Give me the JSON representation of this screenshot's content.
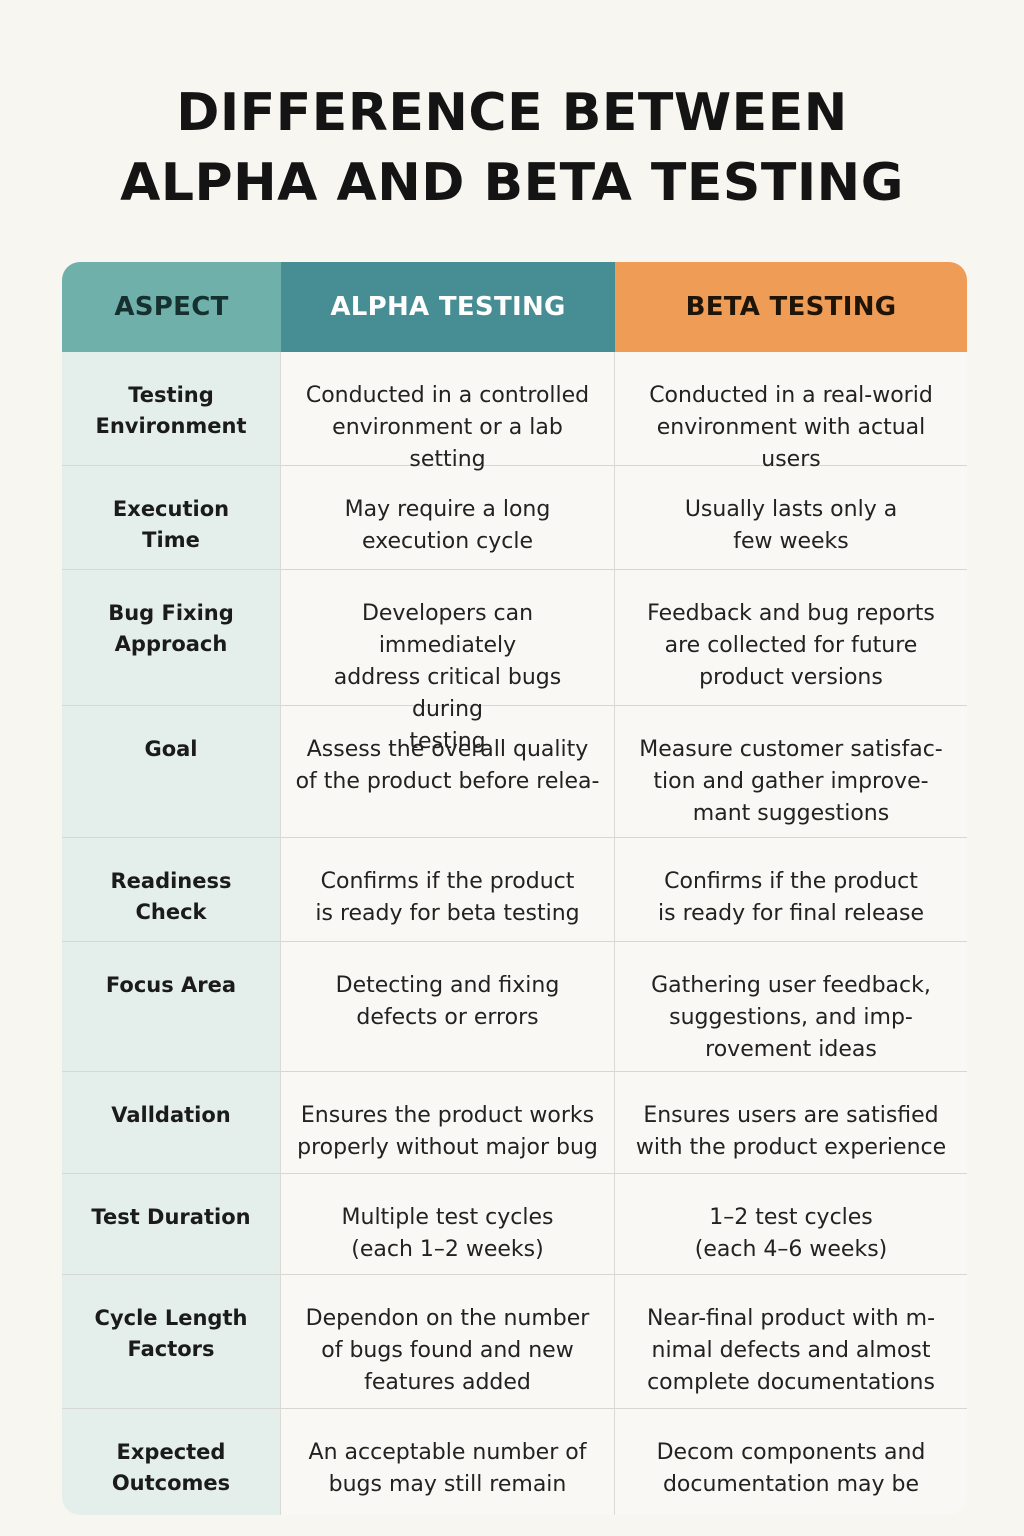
{
  "title": {
    "line1": "DIFFERENCE BETWEEN",
    "line2": "ALPHA AND BETA TESTING"
  },
  "table": {
    "headers": {
      "aspect": "ASPECT",
      "alpha": "ALPHA TESTING",
      "beta": "BETA TESTING"
    },
    "rows": [
      {
        "aspect": "Testing\nEnvironment",
        "alpha": "Conducted in a controlled\nenvironment or a lab setting",
        "beta": "Conducted in a real-worid\nenvironment with actual users"
      },
      {
        "aspect": "Execution\nTime",
        "alpha": "May require a long\nexecution cycle",
        "beta": "Usually lasts only a\nfew weeks"
      },
      {
        "aspect": "Bug Fixing\nApproach",
        "alpha": "Developers can immediately\naddress critical bugs during\ntesting",
        "beta": "Feedback and bug reports\nare collected for future\nproduct versions"
      },
      {
        "aspect": "Goal",
        "alpha": "Assess the overall quality\nof the product before relea-",
        "beta": "Measure customer satisfac-\ntion and gather improve-\nmant suggestions"
      },
      {
        "aspect": "Readiness\nCheck",
        "alpha": "Confirms if the product\nis ready for beta testing",
        "beta": "Confirms if the product\nis ready for final release"
      },
      {
        "aspect": "Focus Area",
        "alpha": "Detecting and fixing\ndefects or errors",
        "beta": "Gathering user feedback,\nsuggestions, and imp-\nrovement ideas"
      },
      {
        "aspect": "Valldation",
        "alpha": "Ensures the product works\nproperly without major bug",
        "beta": "Ensures users are satisfied\nwith the product experience"
      },
      {
        "aspect": "Test Duration",
        "alpha": "Multiple test cycles\n(each 1–2 weeks)",
        "beta": "1–2 test cycles\n(each 4–6 weeks)"
      },
      {
        "aspect": "Cycle Length\nFactors",
        "alpha": "Dependon on the number\nof bugs found and new\nfeatures added",
        "beta": "Near-final product with m-\nnimal defects and almost\ncomplete documentations"
      },
      {
        "aspect": "Expected\nOutcomes",
        "alpha": "An acceptable number of\nbugs may still remain",
        "beta": "Decom components and\ndocumentation may be"
      }
    ]
  },
  "colors": {
    "background": "#f8f6f1",
    "aspect_header": "#6fb0ab",
    "alpha_header": "#478d94",
    "beta_header": "#ee9c56",
    "aspect_column": "#e4efec"
  }
}
